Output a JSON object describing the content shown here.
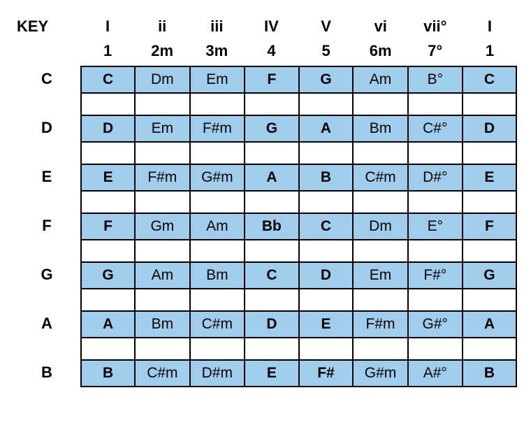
{
  "header": {
    "key_label": "KEY",
    "columns": [
      {
        "numeral": "I",
        "num": "1"
      },
      {
        "numeral": "ii",
        "num": "2m"
      },
      {
        "numeral": "iii",
        "num": "3m"
      },
      {
        "numeral": "IV",
        "num": "4"
      },
      {
        "numeral": "V",
        "num": "5"
      },
      {
        "numeral": "vi",
        "num": "6m"
      },
      {
        "numeral": "vii°",
        "num": "7°"
      },
      {
        "numeral": "I",
        "num": "1"
      }
    ]
  },
  "bold_columns": [
    0,
    3,
    4,
    7
  ],
  "colors": {
    "row_bg": "#a0cdeb",
    "border": "#000000",
    "text": "#000000",
    "empty_bg": "#ffffff"
  },
  "rows": [
    {
      "key": "C",
      "cells": [
        "C",
        "Dm",
        "Em",
        "F",
        "G",
        "Am",
        "B°",
        "C"
      ]
    },
    {
      "key": "D",
      "cells": [
        "D",
        "Em",
        "F#m",
        "G",
        "A",
        "Bm",
        "C#°",
        "D"
      ]
    },
    {
      "key": "E",
      "cells": [
        "E",
        "F#m",
        "G#m",
        "A",
        "B",
        "C#m",
        "D#°",
        "E"
      ]
    },
    {
      "key": "F",
      "cells": [
        "F",
        "Gm",
        "Am",
        "Bb",
        "C",
        "Dm",
        "E°",
        "F"
      ]
    },
    {
      "key": "G",
      "cells": [
        "G",
        "Am",
        "Bm",
        "C",
        "D",
        "Em",
        "F#°",
        "G"
      ]
    },
    {
      "key": "A",
      "cells": [
        "A",
        "Bm",
        "C#m",
        "D",
        "E",
        "F#m",
        "G#°",
        "A"
      ]
    },
    {
      "key": "B",
      "cells": [
        "B",
        "C#m",
        "D#m",
        "E",
        "F#",
        "G#m",
        "A#°",
        "B"
      ]
    }
  ]
}
